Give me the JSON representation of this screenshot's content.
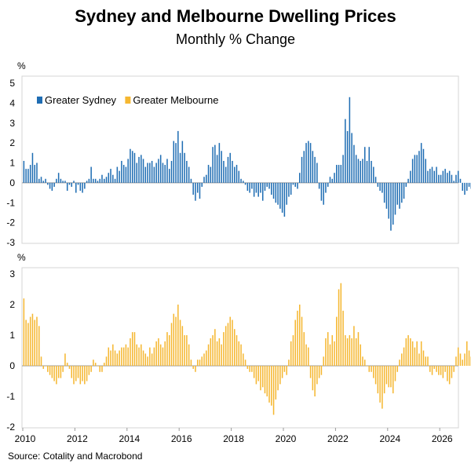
{
  "title": "Sydney and Melbourne Dwelling Prices",
  "subtitle": "Monthly % Change",
  "source": "Source: Cotality and Macrobond",
  "chart_data": {
    "type": "bar",
    "x_start": "2010-01",
    "x_ticks": [
      "2010",
      "2012",
      "2014",
      "2016",
      "2018",
      "2020",
      "2022",
      "2024",
      "2026"
    ],
    "panels": [
      {
        "unit_label": "%",
        "ylim": [
          -3,
          5
        ],
        "yticks": [
          "5",
          "4",
          "3",
          "2",
          "1",
          "0",
          "-1",
          "-2",
          "-3"
        ],
        "legend": [
          "Greater Sydney",
          "Greater Melbourne"
        ],
        "series": [
          {
            "name": "Greater Sydney",
            "color": "#1f6db3",
            "values": [
              1.1,
              0.7,
              0.7,
              0.9,
              1.5,
              0.9,
              1.0,
              0.2,
              0.3,
              0.1,
              0.2,
              -0.1,
              -0.3,
              -0.4,
              -0.2,
              0.2,
              0.5,
              0.2,
              0.1,
              0.1,
              -0.4,
              -0.1,
              -0.2,
              0.1,
              -0.5,
              -0.1,
              -0.4,
              -0.5,
              -0.3,
              0.1,
              0.2,
              0.8,
              0.2,
              0.2,
              0.1,
              0.2,
              0.4,
              0.2,
              0.3,
              0.5,
              0.7,
              0.4,
              0.2,
              0.8,
              0.6,
              1.1,
              0.9,
              0.8,
              1.2,
              1.7,
              1.6,
              1.5,
              1.0,
              1.3,
              1.4,
              1.2,
              0.8,
              1.0,
              1.0,
              1.1,
              0.8,
              1.0,
              1.2,
              1.4,
              1.0,
              0.9,
              1.2,
              0.7,
              1.1,
              2.1,
              2.0,
              2.6,
              1.5,
              2.1,
              1.5,
              1.1,
              0.8,
              0.2,
              -0.6,
              -0.9,
              -0.5,
              -0.8,
              -0.2,
              0.3,
              0.4,
              0.9,
              0.8,
              1.8,
              1.9,
              1.4,
              2.0,
              1.6,
              1.1,
              0.8,
              1.3,
              1.5,
              1.1,
              0.8,
              0.9,
              0.6,
              0.2,
              0.1,
              -0.1,
              -0.4,
              -0.5,
              -0.3,
              -0.7,
              -0.5,
              -0.7,
              -0.5,
              -0.9,
              -0.4,
              -0.2,
              -0.3,
              -0.6,
              -0.8,
              -1.0,
              -1.1,
              -1.3,
              -1.5,
              -1.7,
              -1.1,
              -0.7,
              -0.6,
              -0.1,
              -0.2,
              -0.3,
              0.5,
              1.3,
              1.6,
              2.0,
              2.1,
              2.0,
              1.6,
              1.3,
              1.0,
              -0.3,
              -0.9,
              -1.1,
              -0.5,
              -0.2,
              0.3,
              0.2,
              0.5,
              0.9,
              0.9,
              0.9,
              1.4,
              3.2,
              2.6,
              4.3,
              2.5,
              1.9,
              1.4,
              1.2,
              1.1,
              1.2,
              1.8,
              1.1,
              1.8,
              1.1,
              0.8,
              0.3,
              -0.2,
              -0.4,
              -0.5,
              -1.0,
              -1.3,
              -1.8,
              -2.4,
              -2.1,
              -1.6,
              -1.1,
              -1.3,
              -1.0,
              -0.8,
              -0.2,
              0.2,
              0.6,
              1.2,
              1.4,
              1.4,
              1.6,
              2.0,
              1.7,
              1.2,
              0.6,
              0.7,
              0.8,
              0.6,
              0.8,
              0.4,
              0.4,
              0.6,
              0.7,
              0.5,
              0.6,
              0.4,
              0.1,
              0.4,
              0.6,
              0.2,
              -0.4,
              -0.6,
              -0.4,
              -0.2,
              -0.3,
              -0.1,
              0.2,
              0.5,
              0.8,
              0.6,
              0.8,
              0.4,
              0.8,
              0.5,
              0.9,
              0.8,
              0.8,
              0.3,
              -0.2,
              0.2,
              -0.1,
              -0.3,
              -0.6
            ]
          }
        ]
      },
      {
        "unit_label": "%",
        "ylim": [
          -2,
          3
        ],
        "yticks": [
          "3",
          "2",
          "1",
          "0",
          "-1",
          "-2"
        ],
        "series": [
          {
            "name": "Greater Melbourne",
            "color": "#f5b731",
            "values": [
              2.2,
              1.5,
              1.4,
              1.6,
              1.7,
              1.5,
              1.6,
              1.3,
              0.3,
              -0.1,
              0.0,
              -0.2,
              -0.3,
              -0.4,
              -0.5,
              -0.6,
              -0.4,
              -0.4,
              -0.2,
              0.4,
              0.1,
              -0.1,
              -0.4,
              -0.6,
              -0.5,
              -0.4,
              -0.6,
              -0.5,
              -0.6,
              -0.5,
              -0.3,
              -0.2,
              0.2,
              0.1,
              0.0,
              -0.2,
              -0.2,
              0.1,
              0.3,
              0.6,
              0.5,
              0.7,
              0.5,
              0.4,
              0.5,
              0.6,
              0.6,
              0.7,
              0.6,
              0.9,
              1.1,
              1.1,
              0.7,
              0.6,
              0.7,
              0.5,
              0.4,
              0.3,
              0.6,
              0.4,
              0.6,
              0.8,
              0.9,
              0.7,
              0.6,
              0.8,
              1.1,
              1.0,
              1.4,
              1.7,
              1.6,
              2.0,
              1.5,
              1.3,
              1.0,
              1.0,
              0.7,
              0.2,
              -0.1,
              -0.2,
              0.2,
              0.2,
              0.3,
              0.4,
              0.5,
              0.7,
              0.9,
              1.0,
              1.2,
              0.8,
              0.9,
              0.7,
              1.1,
              1.3,
              1.4,
              1.6,
              1.5,
              1.2,
              1.0,
              0.8,
              0.7,
              0.4,
              0.2,
              -0.1,
              -0.2,
              -0.2,
              -0.4,
              -0.6,
              -0.5,
              -0.8,
              -0.7,
              -0.9,
              -1.0,
              -1.2,
              -1.3,
              -1.6,
              -1.1,
              -0.8,
              -0.6,
              -0.4,
              -0.2,
              -0.3,
              0.2,
              0.8,
              1.0,
              1.5,
              1.8,
              2.0,
              1.6,
              1.1,
              0.7,
              0.6,
              -0.4,
              -0.8,
              -1.0,
              -0.6,
              -0.4,
              -0.3,
              0.3,
              0.9,
              1.1,
              0.7,
              1.0,
              0.8,
              1.6,
              2.5,
              2.7,
              1.8,
              1.0,
              0.9,
              1.0,
              0.9,
              1.3,
              0.9,
              1.1,
              0.7,
              0.3,
              0.2,
              0.0,
              -0.2,
              -0.2,
              -0.4,
              -0.6,
              -0.9,
              -1.2,
              -1.4,
              -0.9,
              -0.6,
              -0.7,
              -0.7,
              -0.9,
              -0.5,
              -0.2,
              0.2,
              0.4,
              0.6,
              0.9,
              1.0,
              0.9,
              0.8,
              0.6,
              0.8,
              0.4,
              0.8,
              0.5,
              0.3,
              0.3,
              -0.2,
              -0.3,
              -0.1,
              -0.2,
              -0.3,
              -0.3,
              -0.4,
              -0.2,
              -0.5,
              -0.6,
              -0.4,
              -0.2,
              0.3,
              0.6,
              0.4,
              0.2,
              0.4,
              0.8,
              0.5,
              0.3,
              0.3,
              0.6,
              0.8,
              0.5,
              0.8,
              0.2,
              -0.2,
              -0.2,
              -0.3,
              -0.6,
              -0.6
            ]
          }
        ]
      }
    ]
  }
}
